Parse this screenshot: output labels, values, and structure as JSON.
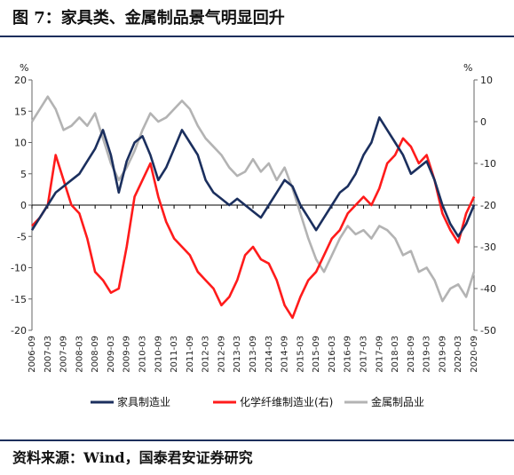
{
  "title": "图 7：家具类、金属制品景气明显回升",
  "source": "资料来源：Wind，国泰君安证券研究",
  "colors": {
    "furniture": "#1b2f5e",
    "fiber": "#ff1b1b",
    "metal": "#b3b3b3",
    "zero": "#000000"
  },
  "chart_data": {
    "type": "line",
    "left_axis": {
      "unit": "%",
      "min": -20,
      "max": 20,
      "ticks": [
        20,
        15,
        10,
        5,
        0,
        -5,
        -10,
        -15,
        -20
      ]
    },
    "right_axis": {
      "unit": "%",
      "min": -50,
      "max": 10,
      "ticks": [
        10,
        0,
        -10,
        -20,
        -30,
        -40,
        -50
      ]
    },
    "x_start": "2006-09",
    "x_end": "2020-09",
    "x_ticks": [
      "2006-09",
      "2007-03",
      "2007-09",
      "2008-03",
      "2008-09",
      "2009-03",
      "2009-09",
      "2010-03",
      "2010-09",
      "2011-03",
      "2011-09",
      "2012-03",
      "2012-09",
      "2013-03",
      "2013-09",
      "2014-03",
      "2014-09",
      "2015-03",
      "2015-09",
      "2016-03",
      "2016-09",
      "2017-03",
      "2017-09",
      "2018-03",
      "2018-09",
      "2019-03",
      "2019-09",
      "2020-03",
      "2020-09"
    ],
    "series": [
      {
        "name": "家具制造业",
        "axis": "left",
        "color": "#1b2f5e",
        "points": [
          [
            "2006-09",
            -4
          ],
          [
            "2006-12",
            -2
          ],
          [
            "2007-03",
            0
          ],
          [
            "2007-06",
            2
          ],
          [
            "2007-09",
            3
          ],
          [
            "2007-12",
            4
          ],
          [
            "2008-03",
            5
          ],
          [
            "2008-06",
            7
          ],
          [
            "2008-09",
            9
          ],
          [
            "2008-12",
            12
          ],
          [
            "2009-03",
            8
          ],
          [
            "2009-06",
            2
          ],
          [
            "2009-09",
            7
          ],
          [
            "2009-12",
            10
          ],
          [
            "2010-03",
            11
          ],
          [
            "2010-06",
            8
          ],
          [
            "2010-09",
            4
          ],
          [
            "2010-12",
            6
          ],
          [
            "2011-03",
            9
          ],
          [
            "2011-06",
            12
          ],
          [
            "2011-09",
            10
          ],
          [
            "2011-12",
            8
          ],
          [
            "2012-03",
            4
          ],
          [
            "2012-06",
            2
          ],
          [
            "2012-09",
            1
          ],
          [
            "2012-12",
            0
          ],
          [
            "2013-03",
            1
          ],
          [
            "2013-06",
            0
          ],
          [
            "2013-09",
            -1
          ],
          [
            "2013-12",
            -2
          ],
          [
            "2014-03",
            0
          ],
          [
            "2014-06",
            2
          ],
          [
            "2014-09",
            4
          ],
          [
            "2014-12",
            3
          ],
          [
            "2015-03",
            0
          ],
          [
            "2015-06",
            -2
          ],
          [
            "2015-09",
            -4
          ],
          [
            "2015-12",
            -2
          ],
          [
            "2016-03",
            0
          ],
          [
            "2016-06",
            2
          ],
          [
            "2016-09",
            3
          ],
          [
            "2016-12",
            5
          ],
          [
            "2017-03",
            8
          ],
          [
            "2017-06",
            10
          ],
          [
            "2017-09",
            14
          ],
          [
            "2017-12",
            12
          ],
          [
            "2018-03",
            10
          ],
          [
            "2018-06",
            8
          ],
          [
            "2018-09",
            5
          ],
          [
            "2018-12",
            6
          ],
          [
            "2019-03",
            7
          ],
          [
            "2019-06",
            4
          ],
          [
            "2019-09",
            0
          ],
          [
            "2019-12",
            -3
          ],
          [
            "2020-03",
            -5
          ],
          [
            "2020-06",
            -3
          ],
          [
            "2020-09",
            0
          ]
        ]
      },
      {
        "name": "化学纤维制造业(右)",
        "axis": "right",
        "color": "#ff1b1b",
        "points": [
          [
            "2006-09",
            -25
          ],
          [
            "2006-12",
            -23
          ],
          [
            "2007-03",
            -20
          ],
          [
            "2007-06",
            -8
          ],
          [
            "2007-09",
            -14
          ],
          [
            "2007-12",
            -20
          ],
          [
            "2008-03",
            -22
          ],
          [
            "2008-06",
            -28
          ],
          [
            "2008-09",
            -36
          ],
          [
            "2008-12",
            -38
          ],
          [
            "2009-03",
            -41
          ],
          [
            "2009-06",
            -40
          ],
          [
            "2009-09",
            -30
          ],
          [
            "2009-12",
            -18
          ],
          [
            "2010-03",
            -14
          ],
          [
            "2010-06",
            -10
          ],
          [
            "2010-09",
            -18
          ],
          [
            "2010-12",
            -24
          ],
          [
            "2011-03",
            -28
          ],
          [
            "2011-06",
            -30
          ],
          [
            "2011-09",
            -32
          ],
          [
            "2011-12",
            -36
          ],
          [
            "2012-03",
            -38
          ],
          [
            "2012-06",
            -40
          ],
          [
            "2012-09",
            -44
          ],
          [
            "2012-12",
            -42
          ],
          [
            "2013-03",
            -38
          ],
          [
            "2013-06",
            -32
          ],
          [
            "2013-09",
            -30
          ],
          [
            "2013-12",
            -33
          ],
          [
            "2014-03",
            -34
          ],
          [
            "2014-06",
            -38
          ],
          [
            "2014-09",
            -44
          ],
          [
            "2014-12",
            -47
          ],
          [
            "2015-03",
            -42
          ],
          [
            "2015-06",
            -38
          ],
          [
            "2015-09",
            -36
          ],
          [
            "2015-12",
            -32
          ],
          [
            "2016-03",
            -28
          ],
          [
            "2016-06",
            -26
          ],
          [
            "2016-09",
            -22
          ],
          [
            "2016-12",
            -20
          ],
          [
            "2017-03",
            -18
          ],
          [
            "2017-06",
            -20
          ],
          [
            "2017-09",
            -16
          ],
          [
            "2017-12",
            -10
          ],
          [
            "2018-03",
            -8
          ],
          [
            "2018-06",
            -4
          ],
          [
            "2018-09",
            -6
          ],
          [
            "2018-12",
            -10
          ],
          [
            "2019-03",
            -8
          ],
          [
            "2019-06",
            -14
          ],
          [
            "2019-09",
            -22
          ],
          [
            "2019-12",
            -26
          ],
          [
            "2020-03",
            -29
          ],
          [
            "2020-06",
            -22
          ],
          [
            "2020-09",
            -18
          ]
        ]
      },
      {
        "name": "金属制品业",
        "axis": "right",
        "color": "#b3b3b3",
        "points": [
          [
            "2006-09",
            0
          ],
          [
            "2006-12",
            3
          ],
          [
            "2007-03",
            6
          ],
          [
            "2007-06",
            3
          ],
          [
            "2007-09",
            -2
          ],
          [
            "2007-12",
            -1
          ],
          [
            "2008-03",
            1
          ],
          [
            "2008-06",
            -1
          ],
          [
            "2008-09",
            2
          ],
          [
            "2008-12",
            -4
          ],
          [
            "2009-03",
            -10
          ],
          [
            "2009-06",
            -14
          ],
          [
            "2009-09",
            -11
          ],
          [
            "2009-12",
            -7
          ],
          [
            "2010-03",
            -2
          ],
          [
            "2010-06",
            2
          ],
          [
            "2010-09",
            0
          ],
          [
            "2010-12",
            1
          ],
          [
            "2011-03",
            3
          ],
          [
            "2011-06",
            5
          ],
          [
            "2011-09",
            3
          ],
          [
            "2011-12",
            -1
          ],
          [
            "2012-03",
            -4
          ],
          [
            "2012-06",
            -6
          ],
          [
            "2012-09",
            -8
          ],
          [
            "2012-12",
            -11
          ],
          [
            "2013-03",
            -13
          ],
          [
            "2013-06",
            -12
          ],
          [
            "2013-09",
            -9
          ],
          [
            "2013-12",
            -12
          ],
          [
            "2014-03",
            -10
          ],
          [
            "2014-06",
            -14
          ],
          [
            "2014-09",
            -11
          ],
          [
            "2014-12",
            -16
          ],
          [
            "2015-03",
            -22
          ],
          [
            "2015-06",
            -28
          ],
          [
            "2015-09",
            -33
          ],
          [
            "2015-12",
            -36
          ],
          [
            "2016-03",
            -32
          ],
          [
            "2016-06",
            -28
          ],
          [
            "2016-09",
            -25
          ],
          [
            "2016-12",
            -27
          ],
          [
            "2017-03",
            -26
          ],
          [
            "2017-06",
            -28
          ],
          [
            "2017-09",
            -25
          ],
          [
            "2017-12",
            -26
          ],
          [
            "2018-03",
            -28
          ],
          [
            "2018-06",
            -32
          ],
          [
            "2018-09",
            -31
          ],
          [
            "2018-12",
            -36
          ],
          [
            "2019-03",
            -35
          ],
          [
            "2019-06",
            -38
          ],
          [
            "2019-09",
            -43
          ],
          [
            "2019-12",
            -40
          ],
          [
            "2020-03",
            -39
          ],
          [
            "2020-06",
            -42
          ],
          [
            "2020-09",
            -36
          ]
        ]
      }
    ],
    "legend_position": "bottom",
    "grid": false
  }
}
